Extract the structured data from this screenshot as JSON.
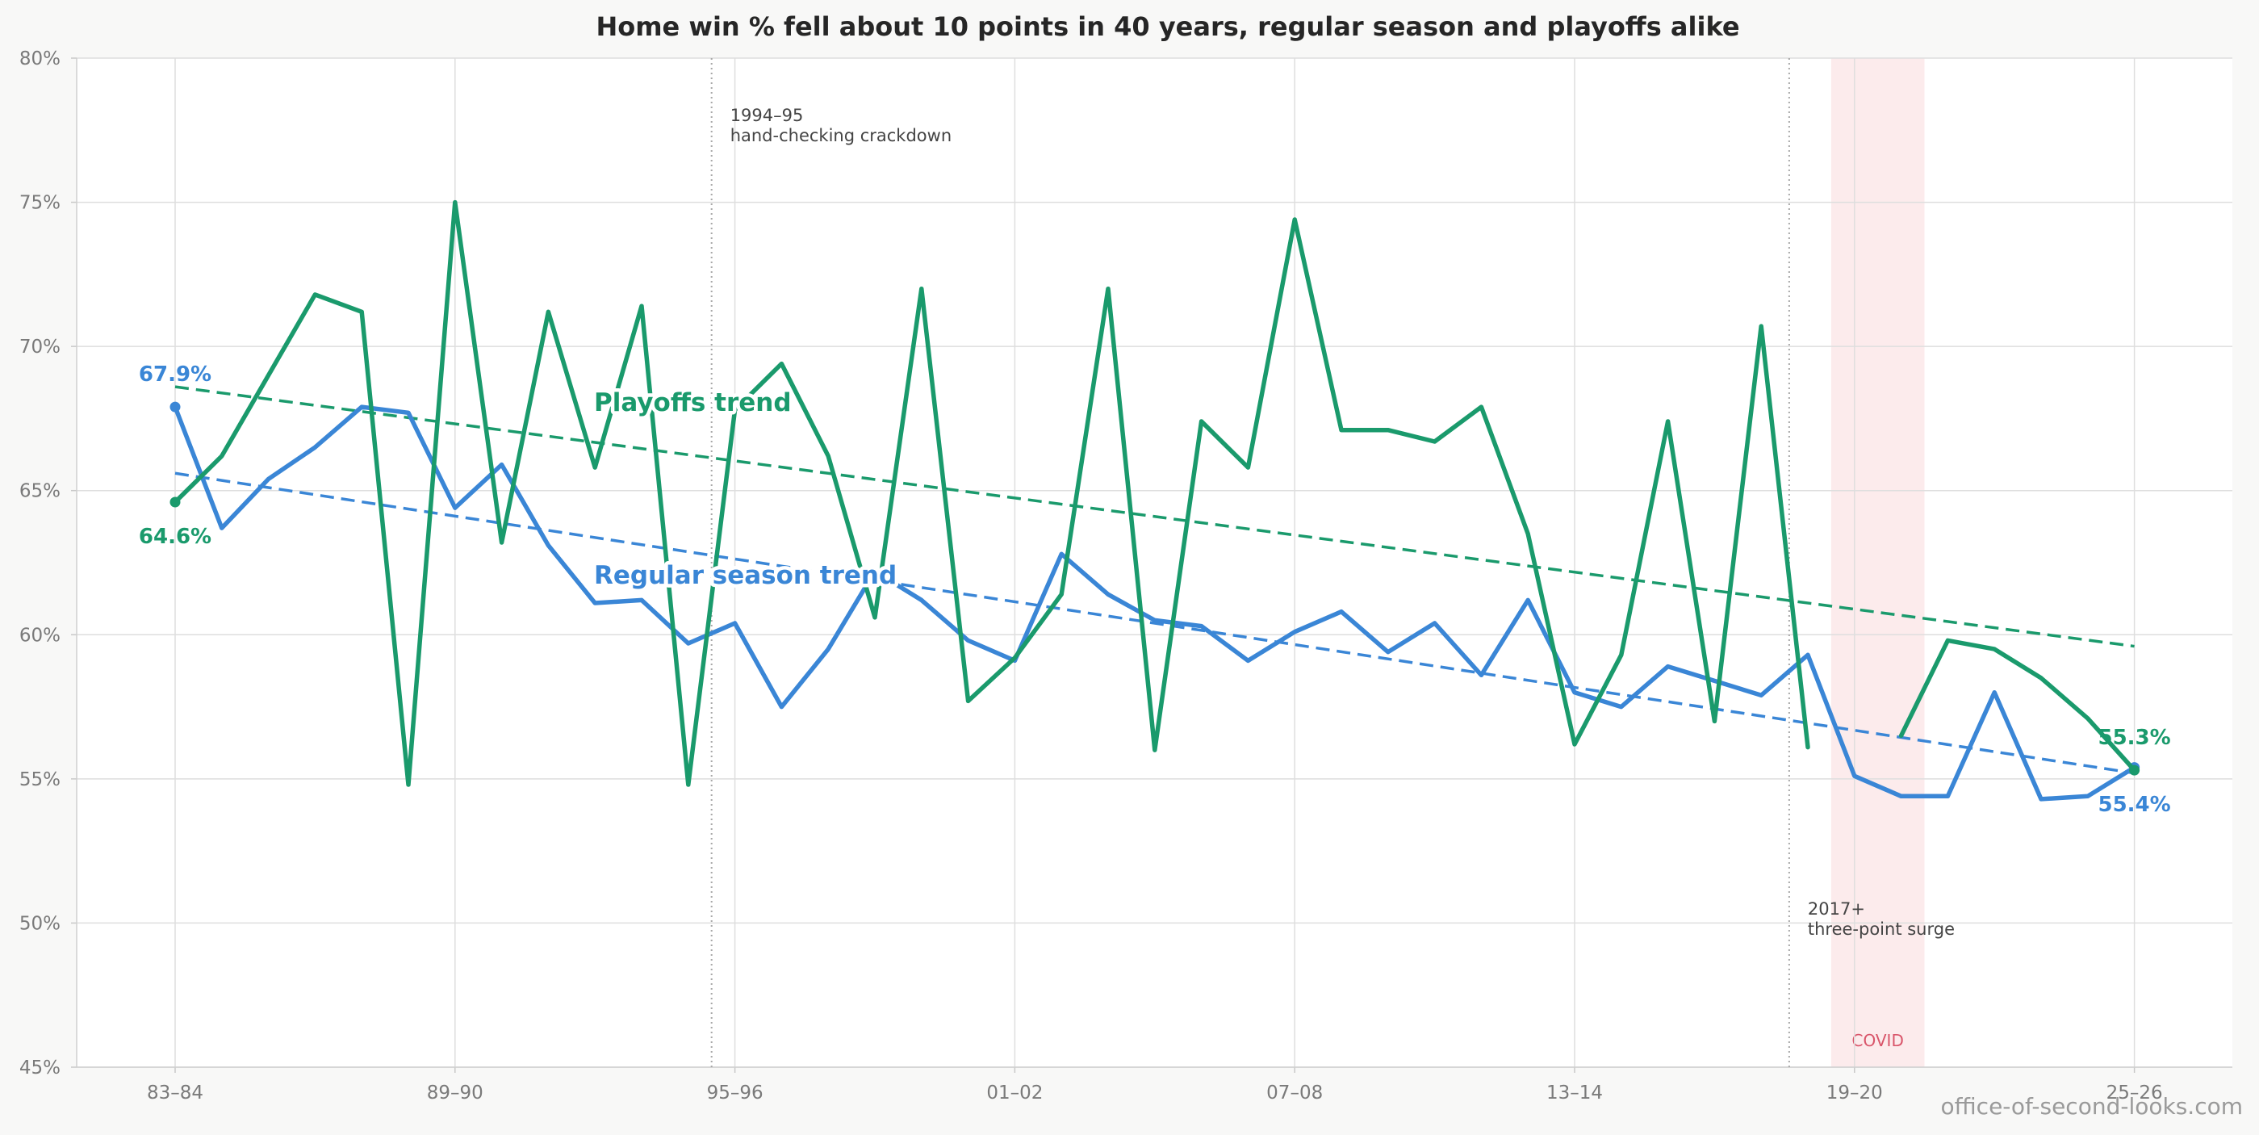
{
  "chart_data": {
    "type": "line",
    "title": "Home win % fell about 10 points in 40 years, regular season and playoffs alike",
    "xlabel": "",
    "ylabel": "",
    "ylim": [
      45,
      80
    ],
    "y_ticks": [
      "45%",
      "50%",
      "55%",
      "60%",
      "65%",
      "70%",
      "75%",
      "80%"
    ],
    "y_tick_values": [
      45,
      50,
      55,
      60,
      65,
      70,
      75,
      80
    ],
    "x_ticks": [
      "83–84",
      "89–90",
      "95–96",
      "01–02",
      "07–08",
      "13–14",
      "19–20",
      "25–26"
    ],
    "x": [
      "83–84",
      "84–85",
      "85–86",
      "86–87",
      "87–88",
      "88–89",
      "89–90",
      "90–91",
      "91–92",
      "92–93",
      "93–94",
      "94–95",
      "95–96",
      "96–97",
      "97–98",
      "98–99",
      "99–00",
      "00–01",
      "01–02",
      "02–03",
      "03–04",
      "04–05",
      "05–06",
      "06–07",
      "07–08",
      "08–09",
      "09–10",
      "10–11",
      "11–12",
      "12–13",
      "13–14",
      "14–15",
      "15–16",
      "16–17",
      "17–18",
      "18–19",
      "19–20",
      "20–21",
      "21–22",
      "22–23",
      "23–24",
      "24–25",
      "25–26"
    ],
    "series": [
      {
        "name": "Regular season",
        "color": "#3a86d6",
        "values": [
          67.9,
          63.7,
          65.4,
          66.5,
          67.9,
          67.7,
          64.4,
          65.9,
          63.1,
          61.1,
          61.2,
          59.7,
          60.4,
          57.5,
          59.5,
          62.2,
          61.2,
          59.8,
          59.1,
          62.8,
          61.4,
          60.5,
          60.3,
          59.1,
          60.1,
          60.8,
          59.4,
          60.4,
          58.6,
          61.2,
          58.0,
          57.5,
          58.9,
          58.4,
          57.9,
          59.3,
          55.1,
          54.4,
          54.4,
          58.0,
          54.3,
          54.4,
          55.4
        ]
      },
      {
        "name": "Playoffs",
        "color": "#1a9a6c",
        "values": [
          64.6,
          66.2,
          69.0,
          71.8,
          71.2,
          54.8,
          75.0,
          63.2,
          71.2,
          65.8,
          71.4,
          54.8,
          67.8,
          69.4,
          66.2,
          60.6,
          72.0,
          57.7,
          59.2,
          61.4,
          72.0,
          56.0,
          67.4,
          65.8,
          74.4,
          67.1,
          67.1,
          66.7,
          67.9,
          63.5,
          56.2,
          59.3,
          67.4,
          57.0,
          70.7,
          56.1,
          null,
          56.5,
          59.8,
          59.5,
          58.5,
          57.1,
          55.3
        ]
      }
    ],
    "trendlines": [
      {
        "name": "Playoffs trend",
        "label": "Playoffs trend",
        "color": "#1a9a6c",
        "start": 68.6,
        "end": 59.6
      },
      {
        "name": "Regular season trend",
        "label": "Regular season trend",
        "color": "#3a86d6",
        "start": 65.6,
        "end": 55.2
      }
    ],
    "start_labels": {
      "regular": "67.9%",
      "playoffs": "64.6%"
    },
    "end_labels": {
      "playoffs": "55.3%",
      "regular": "55.4%"
    },
    "annotations": [
      {
        "season_index": 11.5,
        "lines": [
          "1994–95",
          "hand-checking crackdown"
        ]
      },
      {
        "season_index": 34.6,
        "lines": [
          "2017+",
          "three-point surge"
        ]
      }
    ],
    "covid_band": {
      "label": "COVID",
      "from_index": 35.5,
      "to_index": 37.5,
      "label_color": "#d9556a",
      "fill": "#fbe4e6"
    },
    "grid": true,
    "credit": "office-of-second-looks.com"
  }
}
